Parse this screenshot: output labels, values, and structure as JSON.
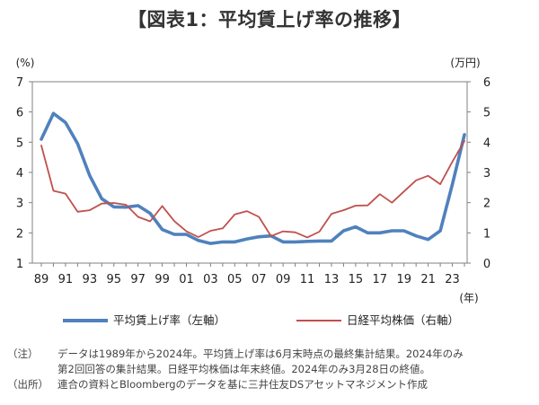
{
  "title": "【図表1：平均賃上げ率の推移】",
  "chart_data": {
    "type": "line",
    "left_axis_unit": "(%)",
    "right_axis_unit": "(万円)",
    "x_axis_unit": "(年)",
    "left_ylim": [
      1,
      7
    ],
    "right_ylim": [
      0,
      6
    ],
    "left_ticks": [
      "1",
      "2",
      "3",
      "4",
      "5",
      "6",
      "7"
    ],
    "right_ticks": [
      "0",
      "1",
      "2",
      "3",
      "4",
      "5",
      "6"
    ],
    "x_ticks": [
      "89",
      "91",
      "93",
      "95",
      "97",
      "99",
      "01",
      "03",
      "05",
      "07",
      "09",
      "11",
      "13",
      "15",
      "17",
      "19",
      "21",
      "23"
    ],
    "years": [
      1989,
      1990,
      1991,
      1992,
      1993,
      1994,
      1995,
      1996,
      1997,
      1998,
      1999,
      2000,
      2001,
      2002,
      2003,
      2004,
      2005,
      2006,
      2007,
      2008,
      2009,
      2010,
      2011,
      2012,
      2013,
      2014,
      2015,
      2016,
      2017,
      2018,
      2019,
      2020,
      2021,
      2022,
      2023,
      2024
    ],
    "series": [
      {
        "name": "平均賃上げ率（左軸）",
        "axis": "left",
        "color": "#4f81bd",
        "values": [
          5.1,
          5.95,
          5.65,
          4.95,
          3.9,
          3.13,
          2.86,
          2.85,
          2.9,
          2.65,
          2.11,
          1.95,
          1.95,
          1.75,
          1.65,
          1.7,
          1.7,
          1.8,
          1.87,
          1.9,
          1.7,
          1.7,
          1.72,
          1.73,
          1.73,
          2.07,
          2.2,
          2.0,
          2.0,
          2.07,
          2.07,
          1.9,
          1.78,
          2.07,
          3.6,
          5.25
        ]
      },
      {
        "name": "日経平均株価（右軸）",
        "axis": "right",
        "color": "#c0504d",
        "values": [
          3.89,
          2.39,
          2.3,
          1.7,
          1.75,
          1.97,
          1.99,
          1.93,
          1.53,
          1.38,
          1.89,
          1.39,
          1.05,
          0.86,
          1.07,
          1.15,
          1.61,
          1.72,
          1.53,
          0.89,
          1.05,
          1.02,
          0.85,
          1.04,
          1.63,
          1.75,
          1.9,
          1.91,
          2.28,
          2.0,
          2.37,
          2.74,
          2.89,
          2.61,
          3.35,
          4.04
        ]
      }
    ]
  },
  "legend": {
    "left": "平均賃上げ率（左軸）",
    "right": "日経平均株価（右軸）"
  },
  "notes": {
    "note_label": "（注）",
    "note_line1": "データは1989年から2024年。平均賃上げ率は6月末時点の最終集計結果。2024年のみ",
    "note_line2": "第2回回答の集計結果。日経平均株価は年末終値。2024年のみ3月28日の終値。",
    "source_label": "（出所）",
    "source_text": "連合の資料とBloombergのデータを基に三井住友DSアセットマネジメント作成"
  }
}
